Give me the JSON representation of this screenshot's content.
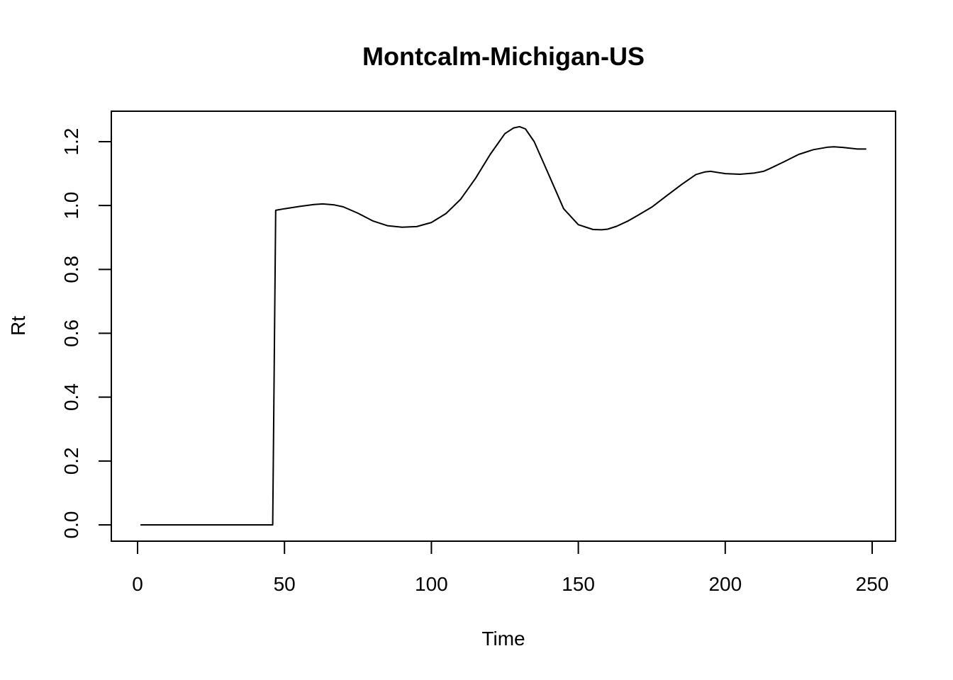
{
  "chart_data": {
    "type": "line",
    "title": "Montcalm-Michigan-US",
    "xlabel": "Time",
    "ylabel": "Rt",
    "xlim": [
      0,
      250
    ],
    "ylim": [
      0,
      1.2
    ],
    "x_ticks": [
      "0",
      "50",
      "100",
      "150",
      "200",
      "250"
    ],
    "y_ticks": [
      "0.0",
      "0.2",
      "0.4",
      "0.6",
      "0.8",
      "1.0",
      "1.2"
    ],
    "grid": false,
    "legend": "none",
    "line_color": "#000000",
    "series": [
      {
        "x": [
          1,
          46,
          47,
          50,
          55,
          60,
          63,
          67,
          70,
          75,
          80,
          85,
          90,
          95,
          100,
          105,
          110,
          115,
          120,
          125,
          128,
          130,
          132,
          135,
          140,
          145,
          150,
          155,
          158,
          160,
          163,
          167,
          170,
          175,
          180,
          185,
          190,
          193,
          195,
          200,
          205,
          210,
          213,
          215,
          220,
          225,
          230,
          235,
          237,
          240,
          245,
          248
        ],
        "y": [
          0.0,
          0.0,
          0.985,
          0.99,
          0.997,
          1.003,
          1.005,
          1.002,
          0.996,
          0.976,
          0.952,
          0.937,
          0.932,
          0.934,
          0.947,
          0.975,
          1.02,
          1.085,
          1.16,
          1.225,
          1.243,
          1.247,
          1.24,
          1.2,
          1.095,
          0.99,
          0.94,
          0.925,
          0.924,
          0.926,
          0.935,
          0.952,
          0.968,
          0.995,
          1.03,
          1.065,
          1.097,
          1.105,
          1.107,
          1.1,
          1.098,
          1.102,
          1.107,
          1.115,
          1.137,
          1.16,
          1.175,
          1.183,
          1.184,
          1.182,
          1.177,
          1.177
        ]
      }
    ]
  }
}
